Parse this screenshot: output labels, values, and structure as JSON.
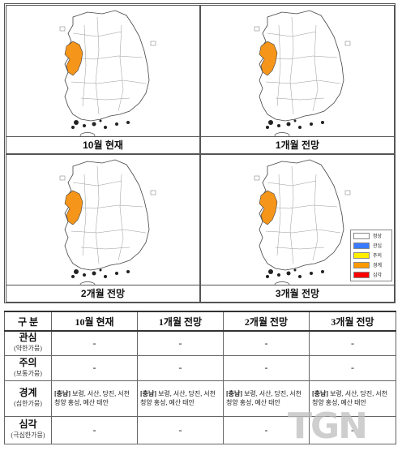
{
  "panels": [
    {
      "caption": "10월 현재"
    },
    {
      "caption": "1개월 전망"
    },
    {
      "caption": "2개월 전망"
    },
    {
      "caption": "3개월 전망"
    }
  ],
  "legend": {
    "items": [
      {
        "label": "정상",
        "color": "#ffffff"
      },
      {
        "label": "관심",
        "color": "#3a7bff"
      },
      {
        "label": "주의",
        "color": "#ffee00"
      },
      {
        "label": "경계",
        "color": "#ff9900"
      },
      {
        "label": "심각",
        "color": "#ff0000"
      }
    ]
  },
  "highlight_color": "#f5951a",
  "table": {
    "header": [
      "구 분",
      "10월 현재",
      "1개월 전망",
      "2개월 전망",
      "3개월 전망"
    ],
    "rows": [
      {
        "level": "관심",
        "sub": "(약한가뭄)",
        "cells": [
          "-",
          "-",
          "-",
          "-"
        ]
      },
      {
        "level": "주의",
        "sub": "(보통가뭄)",
        "cells": [
          "-",
          "-",
          "-",
          "-"
        ]
      },
      {
        "level": "경계",
        "sub": "(심한가뭄)",
        "cells": [
          {
            "prov": "[충남]",
            "text": " 보령, 서산, 당진, 서천 청양 홍성, 예산 태안"
          },
          {
            "prov": "[충남]",
            "text": " 보령, 서산, 당진, 서천 청양 홍성, 예산 태안"
          },
          {
            "prov": "[충남]",
            "text": " 보령, 서산, 당진, 서천 청양 홍성, 예산 태안"
          },
          {
            "prov": "[충남]",
            "text": " 보령, 서산, 당진, 서천 청양 홍성, 예산 태안"
          }
        ]
      },
      {
        "level": "심각",
        "sub": "(극심한가뭄)",
        "cells": [
          "-",
          "-",
          "-",
          "-"
        ]
      }
    ]
  },
  "watermark": "TGN"
}
